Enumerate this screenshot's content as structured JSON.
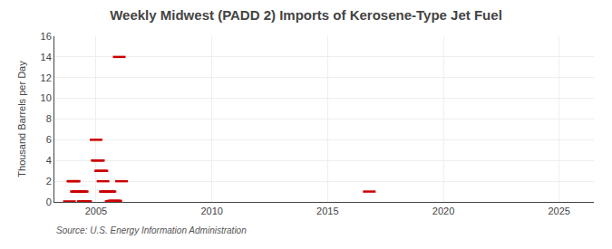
{
  "chart_data": {
    "type": "scatter",
    "title": "Weekly Midwest (PADD 2) Imports of Kerosene-Type Jet Fuel",
    "ylabel": "Thousand Barrels per Day",
    "annotations": [
      "Source: U.S. Energy Information Administration"
    ],
    "x": [
      2003.85,
      2004.0,
      2004.05,
      2004.15,
      2004.2,
      2004.25,
      2004.3,
      2004.35,
      2004.4,
      2004.45,
      2004.5,
      2004.55,
      2005.0,
      2005.05,
      2005.1,
      2005.2,
      2005.25,
      2005.3,
      2005.4,
      2005.45,
      2005.5,
      2005.55,
      2005.6,
      2005.65,
      2005.7,
      2005.75,
      2005.8,
      2005.85,
      2006.0,
      2006.1,
      2016.8
    ],
    "values": [
      0.05,
      2.0,
      2.0,
      1.0,
      1.0,
      1.0,
      1.0,
      1.0,
      1.0,
      0.05,
      0.05,
      0.05,
      6.0,
      4.0,
      4.0,
      3.0,
      3.0,
      2.0,
      1.0,
      1.0,
      1.0,
      1.0,
      1.0,
      0.05,
      0.05,
      0.1,
      0.1,
      0.1,
      14.0,
      2.0,
      1.0
    ],
    "color": "#cc0000",
    "marker": "dash",
    "xlim": [
      2003.2,
      2026.5
    ],
    "ylim": [
      0,
      16
    ],
    "xticks": [
      2005,
      2010,
      2015,
      2020,
      2025
    ],
    "yticks": [
      0,
      2,
      4,
      6,
      8,
      10,
      12,
      14,
      16
    ],
    "grid": true
  }
}
